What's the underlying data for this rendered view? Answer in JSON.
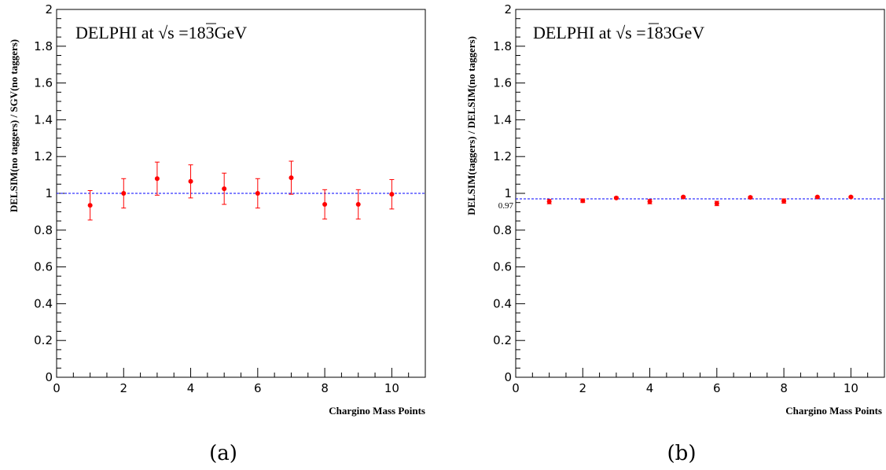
{
  "chart_data": [
    {
      "type": "scatter",
      "panel_label": "(a)",
      "title": "DELPHI at √s =183GeV",
      "title_prefix": "DELPHI at ",
      "title_sqrt": "√s",
      "title_suffix": " =183GeV",
      "xlabel": "Chargino Mass Points",
      "ylabel": "DELSIM(no taggers) / SGV(no taggers)",
      "xlim": [
        0,
        11
      ],
      "ylim": [
        0,
        2
      ],
      "x_ticks": [
        "0",
        "2",
        "4",
        "6",
        "8",
        "10"
      ],
      "y_ticks": [
        "0",
        "0.2",
        "0.4",
        "0.6",
        "0.8",
        "1",
        "1.2",
        "1.4",
        "1.6",
        "1.8",
        "2"
      ],
      "reference_line": {
        "y": 1.0,
        "label": ""
      },
      "series": [
        {
          "x": [
            1,
            2,
            3,
            4,
            5,
            6,
            7,
            8,
            9,
            10
          ],
          "values": [
            0.935,
            1.0,
            1.08,
            1.065,
            1.025,
            1.0,
            1.085,
            0.94,
            0.94,
            0.995
          ],
          "errors": [
            0.08,
            0.08,
            0.09,
            0.09,
            0.085,
            0.08,
            0.09,
            0.08,
            0.08,
            0.08
          ]
        }
      ]
    },
    {
      "type": "scatter",
      "panel_label": "(b)",
      "title": "DELPHI at √s =183GeV",
      "title_prefix": "DELPHI at ",
      "title_sqrt": "√s",
      "title_suffix": " =183GeV",
      "xlabel": "Chargino Mass Points",
      "ylabel": "DELSIM(taggers) / DELSIM(no taggers)",
      "xlim": [
        0,
        11
      ],
      "ylim": [
        0,
        2
      ],
      "x_ticks": [
        "0",
        "2",
        "4",
        "6",
        "8",
        "10"
      ],
      "y_ticks": [
        "0",
        "0.2",
        "0.4",
        "0.6",
        "0.8",
        "1",
        "1.2",
        "1.4",
        "1.6",
        "1.8",
        "2"
      ],
      "reference_line": {
        "y": 0.97,
        "label": "0.97"
      },
      "series": [
        {
          "x": [
            1,
            2,
            3,
            4,
            5,
            6,
            7,
            8,
            9,
            10
          ],
          "values": [
            0.955,
            0.96,
            0.975,
            0.955,
            0.98,
            0.945,
            0.978,
            0.958,
            0.98,
            0.98
          ],
          "errors": [
            0.012,
            0.01,
            0.005,
            0.012,
            0.004,
            0.012,
            0.005,
            0.012,
            0.004,
            0.004
          ]
        }
      ]
    }
  ],
  "colors": {
    "points": "#ff0000",
    "reference_line": "#0000ff",
    "axes": "#000000"
  }
}
